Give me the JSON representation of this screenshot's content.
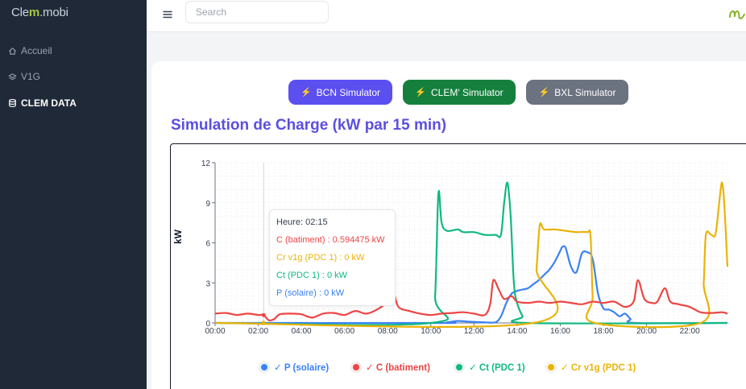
{
  "app": {
    "brand_prefix": "Cle",
    "brand_accent": "m",
    "brand_suffix": ".mobi"
  },
  "sidebar": {
    "items": [
      {
        "label": "Accueil",
        "icon": "home-icon"
      },
      {
        "label": "V1G",
        "icon": "layers-icon"
      },
      {
        "label": "CLEM DATA",
        "icon": "database-icon",
        "active": true
      }
    ]
  },
  "topbar": {
    "search_placeholder": "Search"
  },
  "simulators": [
    {
      "label": "BCN Simulator",
      "color": "#5b4ff0"
    },
    {
      "label": "CLEM' Simulator",
      "color": "#15803d"
    },
    {
      "label": "BXL Simulator",
      "color": "#6b7280"
    }
  ],
  "page": {
    "title": "Simulation de Charge (kW par 15 min)"
  },
  "tooltip": {
    "heure": "Heure: 02:15",
    "c": "C (batiment) : 0.594475 kW",
    "cr": "Cr v1g (PDC 1) : 0 kW",
    "ct": "Ct (PDC 1) : 0 kW",
    "p": "P (solaire) : 0 kW"
  },
  "legend": [
    {
      "label": "✓ P (solaire)",
      "color": "#3b82f6"
    },
    {
      "label": "✓ C (batiment)",
      "color": "#ef4444"
    },
    {
      "label": "✓ Ct (PDC 1)",
      "color": "#10b981"
    },
    {
      "label": "✓ Cr v1g (PDC 1)",
      "color": "#eab308"
    }
  ],
  "chart_data": {
    "type": "line",
    "title": "",
    "xlabel": "",
    "ylabel": "kW",
    "ylim": [
      0,
      12
    ],
    "xlim": [
      0,
      23.75
    ],
    "x_unit": "hour of day",
    "yticks": [
      "0",
      "3",
      "6",
      "9",
      "12"
    ],
    "xticks": [
      "00:00",
      "02:00",
      "04:00",
      "06:00",
      "08:00",
      "10:00",
      "12:00",
      "14:00",
      "16:00",
      "18:00",
      "20:00",
      "22:00"
    ],
    "grid": true,
    "legend_position": "bottom",
    "hover_time": 2.25,
    "series": [
      {
        "name": "P (solaire)",
        "color": "#3b82f6",
        "points": [
          [
            0,
            0
          ],
          [
            10.25,
            0
          ],
          [
            10.75,
            0.05
          ],
          [
            11.25,
            0.15
          ],
          [
            11.75,
            0.1
          ],
          [
            12.5,
            0.05
          ],
          [
            13,
            0.05
          ],
          [
            13.25,
            0.5
          ],
          [
            13.5,
            1.5
          ],
          [
            13.75,
            2.2
          ],
          [
            14,
            2.4
          ],
          [
            14.25,
            2.5
          ],
          [
            14.5,
            2.6
          ],
          [
            14.75,
            2.9
          ],
          [
            15,
            3.2
          ],
          [
            15.25,
            3.6
          ],
          [
            15.5,
            4
          ],
          [
            15.75,
            4.6
          ],
          [
            16,
            5.4
          ],
          [
            16.1,
            5.7
          ],
          [
            16.25,
            5.6
          ],
          [
            16.5,
            4.2
          ],
          [
            16.75,
            3.8
          ],
          [
            17,
            5.2
          ],
          [
            17.25,
            5.3
          ],
          [
            17.5,
            4.8
          ],
          [
            17.75,
            2.2
          ],
          [
            18,
            1.1
          ],
          [
            18.25,
            1
          ],
          [
            18.5,
            0.8
          ],
          [
            18.75,
            0.5
          ],
          [
            19,
            0.7
          ],
          [
            19.25,
            0.3
          ],
          [
            19.5,
            0
          ],
          [
            23.75,
            0
          ]
        ]
      },
      {
        "name": "C (batiment)",
        "color": "#ef4444",
        "points": [
          [
            0,
            0.7
          ],
          [
            0.5,
            0.75
          ],
          [
            1,
            0.6
          ],
          [
            1.5,
            0.7
          ],
          [
            2,
            0.6
          ],
          [
            2.25,
            0.59
          ],
          [
            2.5,
            0.2
          ],
          [
            2.75,
            0.3
          ],
          [
            3,
            0.65
          ],
          [
            3.5,
            0.7
          ],
          [
            4,
            0.65
          ],
          [
            4.5,
            0.4
          ],
          [
            5,
            0.7
          ],
          [
            5.5,
            0.75
          ],
          [
            6,
            0.6
          ],
          [
            6.5,
            0.9
          ],
          [
            7,
            0.7
          ],
          [
            7.5,
            1
          ],
          [
            8,
            1.6
          ],
          [
            8.25,
            2.3
          ],
          [
            8.5,
            1.2
          ],
          [
            9,
            0.9
          ],
          [
            9.5,
            0.7
          ],
          [
            10,
            0.6
          ],
          [
            10.5,
            0.7
          ],
          [
            11,
            0.75
          ],
          [
            11.5,
            0.8
          ],
          [
            12,
            0.7
          ],
          [
            12.5,
            0.6
          ],
          [
            12.75,
            1.4
          ],
          [
            12.9,
            3.2
          ],
          [
            13.15,
            2.5
          ],
          [
            13.4,
            1.8
          ],
          [
            13.75,
            2
          ],
          [
            14,
            1.6
          ],
          [
            14.5,
            1.5
          ],
          [
            15,
            1.6
          ],
          [
            15.5,
            1.5
          ],
          [
            16,
            1.6
          ],
          [
            16.5,
            1.5
          ],
          [
            17,
            1.4
          ],
          [
            17.5,
            1.6
          ],
          [
            18,
            1.5
          ],
          [
            18.5,
            1.6
          ],
          [
            19,
            1.2
          ],
          [
            19.4,
            1.6
          ],
          [
            19.6,
            3.2
          ],
          [
            19.9,
            1.8
          ],
          [
            20.25,
            1.5
          ],
          [
            20.5,
            1.6
          ],
          [
            20.85,
            2.6
          ],
          [
            21.1,
            1.6
          ],
          [
            21.5,
            1.4
          ],
          [
            22,
            1.2
          ],
          [
            22.5,
            0.8
          ],
          [
            23,
            0.75
          ],
          [
            23.5,
            0.8
          ],
          [
            23.75,
            0.7
          ]
        ]
      },
      {
        "name": "Ct (PDC 1)",
        "color": "#10b981",
        "points": [
          [
            0,
            0
          ],
          [
            10,
            0
          ],
          [
            10.2,
            2
          ],
          [
            10.35,
            9.7
          ],
          [
            10.5,
            7.5
          ],
          [
            10.75,
            6.9
          ],
          [
            11.25,
            7
          ],
          [
            11.5,
            6.8
          ],
          [
            12,
            6.8
          ],
          [
            12.5,
            6.6
          ],
          [
            13,
            6.6
          ],
          [
            13.25,
            6.6
          ],
          [
            13.4,
            9
          ],
          [
            13.55,
            10.5
          ],
          [
            13.7,
            8
          ],
          [
            13.85,
            3
          ],
          [
            14,
            1.5
          ],
          [
            14.25,
            0.5
          ],
          [
            14.5,
            0
          ],
          [
            23.75,
            0
          ]
        ]
      },
      {
        "name": "Cr v1g (PDC 1)",
        "color": "#eab308",
        "points": [
          [
            0,
            0
          ],
          [
            14.75,
            0
          ],
          [
            14.9,
            4
          ],
          [
            15.05,
            7.3
          ],
          [
            15.25,
            7
          ],
          [
            15.75,
            7
          ],
          [
            16.25,
            6.9
          ],
          [
            16.75,
            6.8
          ],
          [
            17.25,
            6.8
          ],
          [
            17.4,
            6.5
          ],
          [
            17.5,
            2
          ],
          [
            17.6,
            0
          ],
          [
            22.5,
            0
          ],
          [
            22.65,
            3
          ],
          [
            22.75,
            6.6
          ],
          [
            23,
            6.6
          ],
          [
            23.2,
            6.7
          ],
          [
            23.4,
            9.5
          ],
          [
            23.5,
            10.5
          ],
          [
            23.6,
            9
          ],
          [
            23.75,
            4.2
          ]
        ]
      }
    ]
  }
}
